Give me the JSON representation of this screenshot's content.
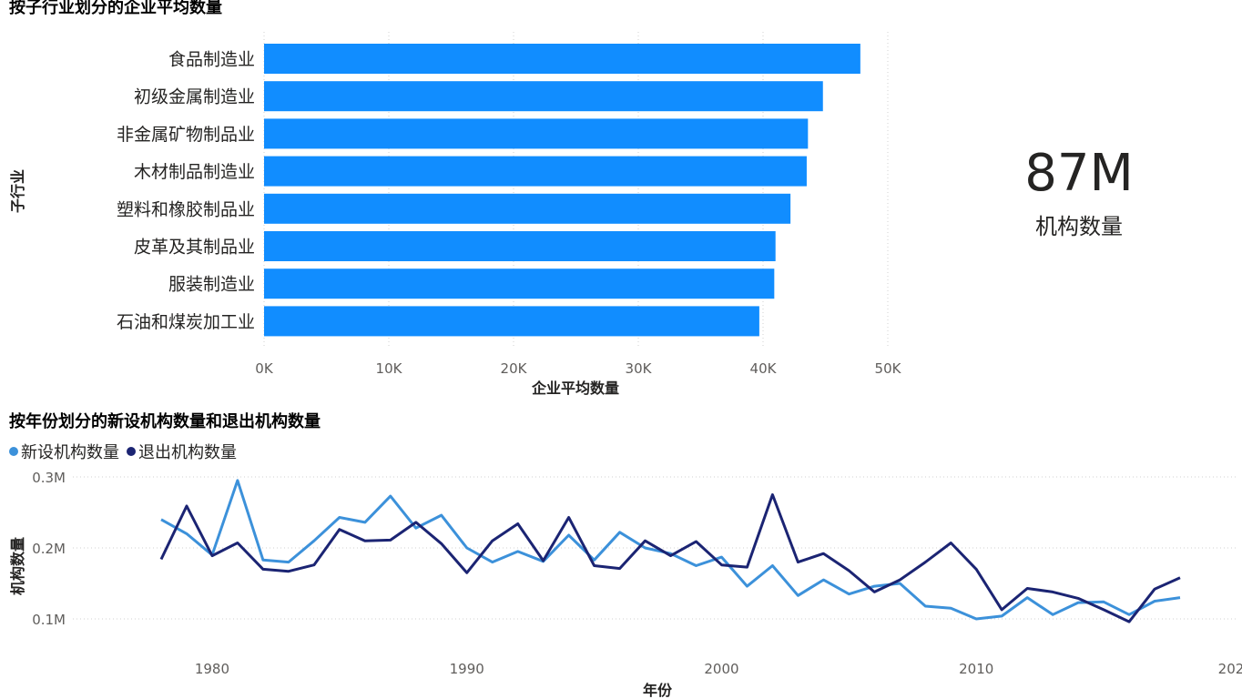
{
  "kpi": {
    "value": "87M",
    "label": "机构数量"
  },
  "chart_data": [
    {
      "type": "bar",
      "orientation": "horizontal",
      "title": "按子行业划分的企业平均数量",
      "xlabel": "企业平均数量",
      "ylabel": "子行业",
      "categories": [
        "食品制造业",
        "初级金属制造业",
        "非金属矿物制品业",
        "木材制品制造业",
        "塑料和橡胶制品业",
        "皮革及其制品业",
        "服装制造业",
        "石油和煤炭加工业"
      ],
      "values": [
        47800,
        44800,
        43600,
        43500,
        42200,
        41000,
        40900,
        39700
      ],
      "xlim": [
        0,
        50000
      ],
      "xticks": [
        "0K",
        "10K",
        "20K",
        "30K",
        "40K",
        "50K"
      ],
      "color": "#118DFF",
      "grid": true
    },
    {
      "type": "line",
      "title": "按年份划分的新设机构数量和退出机构数量",
      "xlabel": "年份",
      "ylabel": "机构数量",
      "x": [
        1978,
        1979,
        1980,
        1981,
        1982,
        1983,
        1984,
        1985,
        1986,
        1987,
        1988,
        1989,
        1990,
        1991,
        1992,
        1993,
        1994,
        1995,
        1996,
        1997,
        1998,
        1999,
        2000,
        2001,
        2002,
        2003,
        2004,
        2005,
        2006,
        2007,
        2008,
        2009,
        2010,
        2011,
        2012,
        2013,
        2014,
        2015,
        2016,
        2017,
        2018
      ],
      "series": [
        {
          "name": "新设机构数量",
          "color": "#3C91DA",
          "values": [
            0.24,
            0.22,
            0.19,
            0.295,
            0.183,
            0.18,
            0.21,
            0.243,
            0.236,
            0.273,
            0.228,
            0.246,
            0.2,
            0.18,
            0.195,
            0.181,
            0.218,
            0.183,
            0.222,
            0.2,
            0.192,
            0.175,
            0.187,
            0.146,
            0.175,
            0.133,
            0.155,
            0.135,
            0.146,
            0.15,
            0.118,
            0.115,
            0.1,
            0.104,
            0.13,
            0.106,
            0.123,
            0.124,
            0.106,
            0.125,
            0.13
          ]
        },
        {
          "name": "退出机构数量",
          "color": "#1B2473",
          "values": [
            0.184,
            0.259,
            0.189,
            0.207,
            0.17,
            0.167,
            0.176,
            0.226,
            0.21,
            0.211,
            0.236,
            0.206,
            0.165,
            0.21,
            0.234,
            0.182,
            0.243,
            0.175,
            0.171,
            0.21,
            0.189,
            0.209,
            0.176,
            0.173,
            0.275,
            0.18,
            0.192,
            0.168,
            0.138,
            0.155,
            0.18,
            0.207,
            0.17,
            0.113,
            0.143,
            0.138,
            0.129,
            0.113,
            0.096,
            0.142,
            0.158
          ]
        }
      ],
      "xlim": [
        1978,
        2020
      ],
      "xticks": [
        "1980",
        "1990",
        "2000",
        "2010",
        "202"
      ],
      "ylim": [
        0.1,
        0.3
      ],
      "yticks": [
        "0.1M",
        "0.2M",
        "0.3M"
      ],
      "legend": "top-left",
      "grid": true
    }
  ]
}
